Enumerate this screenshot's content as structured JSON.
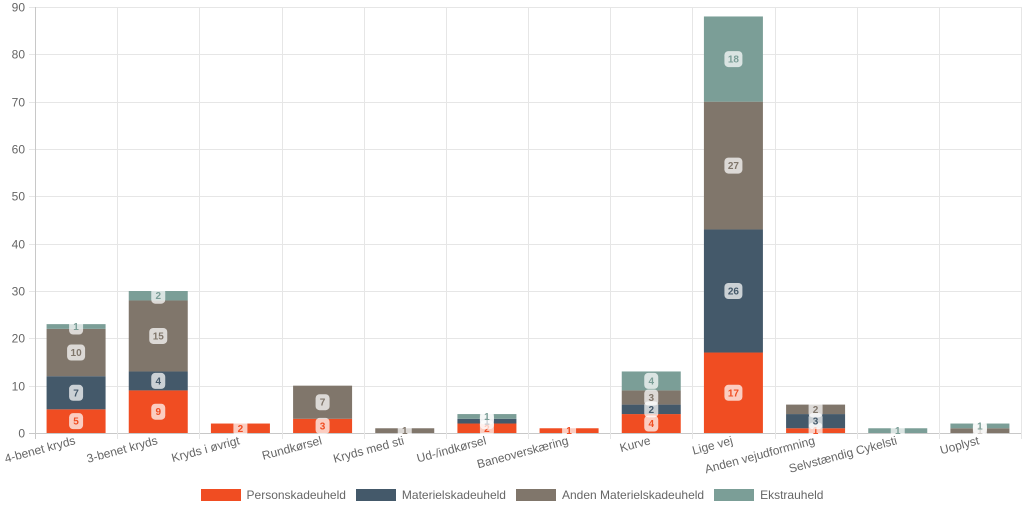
{
  "chart_data": {
    "type": "bar",
    "stacked": true,
    "categories": [
      "4-benet kryds",
      "3-benet kryds",
      "Kryds i øvrigt",
      "Rundkørsel",
      "Kryds med sti",
      "Ud-/indkørsel",
      "Baneoverskæring",
      "Kurve",
      "Lige vej",
      "Anden vejudformning",
      "Selvstændig Cykelsti",
      "Uoplyst"
    ],
    "series": [
      {
        "name": "Personskadeuheld",
        "color": "#f04d22",
        "values": [
          5,
          9,
          2,
          3,
          0,
          2,
          1,
          4,
          17,
          1,
          0,
          0
        ]
      },
      {
        "name": "Materielskadeuheld",
        "color": "#44596a",
        "values": [
          7,
          4,
          0,
          0,
          0,
          1,
          0,
          2,
          26,
          3,
          0,
          0
        ]
      },
      {
        "name": "Anden Materielskadeuheld",
        "color": "#80766b",
        "values": [
          10,
          15,
          0,
          7,
          1,
          0,
          0,
          3,
          27,
          2,
          0,
          1
        ]
      },
      {
        "name": "Ekstrauheld",
        "color": "#7b9e97",
        "values": [
          1,
          2,
          0,
          0,
          0,
          1,
          0,
          4,
          18,
          0,
          1,
          1
        ]
      }
    ],
    "ylim": [
      0,
      90
    ],
    "yticks": [
      0,
      10,
      20,
      30,
      40,
      50,
      60,
      70,
      80,
      90
    ],
    "grid": true,
    "legend_position": "bottom",
    "data_labels": true
  }
}
